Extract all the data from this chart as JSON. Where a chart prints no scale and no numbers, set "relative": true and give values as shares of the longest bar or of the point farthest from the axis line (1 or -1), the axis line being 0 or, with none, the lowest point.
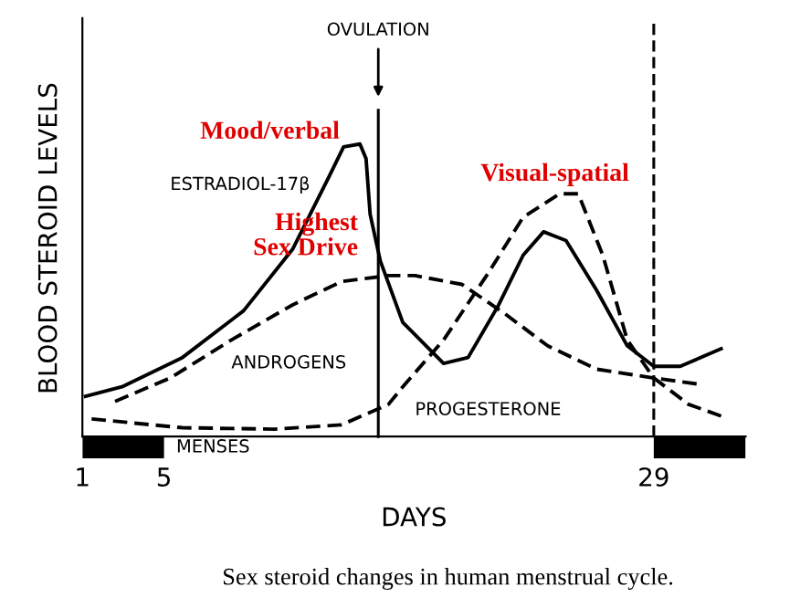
{
  "chart_data": {
    "type": "line",
    "relative": true,
    "xlabel": "DAYS",
    "ylabel": "BLOOD STEROID LEVELS",
    "x": [
      1.15,
      2.94,
      5.9,
      8.9,
      11.3,
      13.1,
      13.8,
      14.6,
      14.9,
      15.1,
      15.6,
      16.7,
      18.7,
      19.9,
      21.4,
      22.6,
      23.6,
      24.7,
      26.2,
      27.7,
      29.0,
      30.3,
      32.3
    ],
    "xlim": [
      1,
      33.5
    ],
    "xticks": [
      1,
      5,
      29
    ],
    "grid": false,
    "marker": "none",
    "series": [
      {
        "name": "ESTRADIOL-17β",
        "color": "#000000",
        "line_style": "solid",
        "values": [
          0.137,
          0.17,
          0.27,
          0.43,
          0.64,
          0.89,
          0.99,
          1.0,
          0.95,
          0.76,
          0.6,
          0.39,
          0.25,
          0.27,
          0.45,
          0.62,
          0.7,
          0.67,
          0.5,
          0.31,
          0.24,
          0.24,
          0.3
        ]
      },
      {
        "name": "ANDROGENS",
        "color": "#000000",
        "line_style": "dashed",
        "x": [
          2.6,
          5.3,
          8.3,
          11.3,
          13.7,
          16.0,
          17.3,
          19.6,
          21.7,
          23.8,
          26.2,
          29.0,
          31.1
        ],
        "values": [
          0.12,
          0.2,
          0.33,
          0.45,
          0.53,
          0.55,
          0.55,
          0.52,
          0.42,
          0.31,
          0.23,
          0.2,
          0.18
        ]
      },
      {
        "name": "PROGESTERONE",
        "color": "#000000",
        "line_style": "dashed",
        "x": [
          1.45,
          5.9,
          10.4,
          13.7,
          16.0,
          16.7,
          18.7,
          20.9,
          22.6,
          24.4,
          25.3,
          26.5,
          27.7,
          29.0,
          30.7,
          32.3
        ],
        "values": [
          0.06,
          0.03,
          0.025,
          0.04,
          0.11,
          0.17,
          0.33,
          0.56,
          0.75,
          0.83,
          0.83,
          0.62,
          0.33,
          0.2,
          0.11,
          0.07
        ]
      }
    ],
    "ref_lines": [
      {
        "axis": "x",
        "value": 15.5,
        "label": "OVULATION",
        "color": "#000000",
        "line_style": "solid"
      },
      {
        "axis": "x",
        "value": 29,
        "label": null,
        "color": "#000000",
        "line_style": "dashed"
      }
    ],
    "annotations": [
      "MENSES",
      {
        "text": "Mood/verbal",
        "x": 14.6,
        "y": 1.0
      },
      {
        "text": "Highest\nSex Drive",
        "x": 16.0,
        "y": 0.55
      },
      {
        "text": "Visual-spatial",
        "x": 24.4,
        "y": 0.83
      },
      "Sex steroid changes in human menstrual cycle."
    ]
  }
}
